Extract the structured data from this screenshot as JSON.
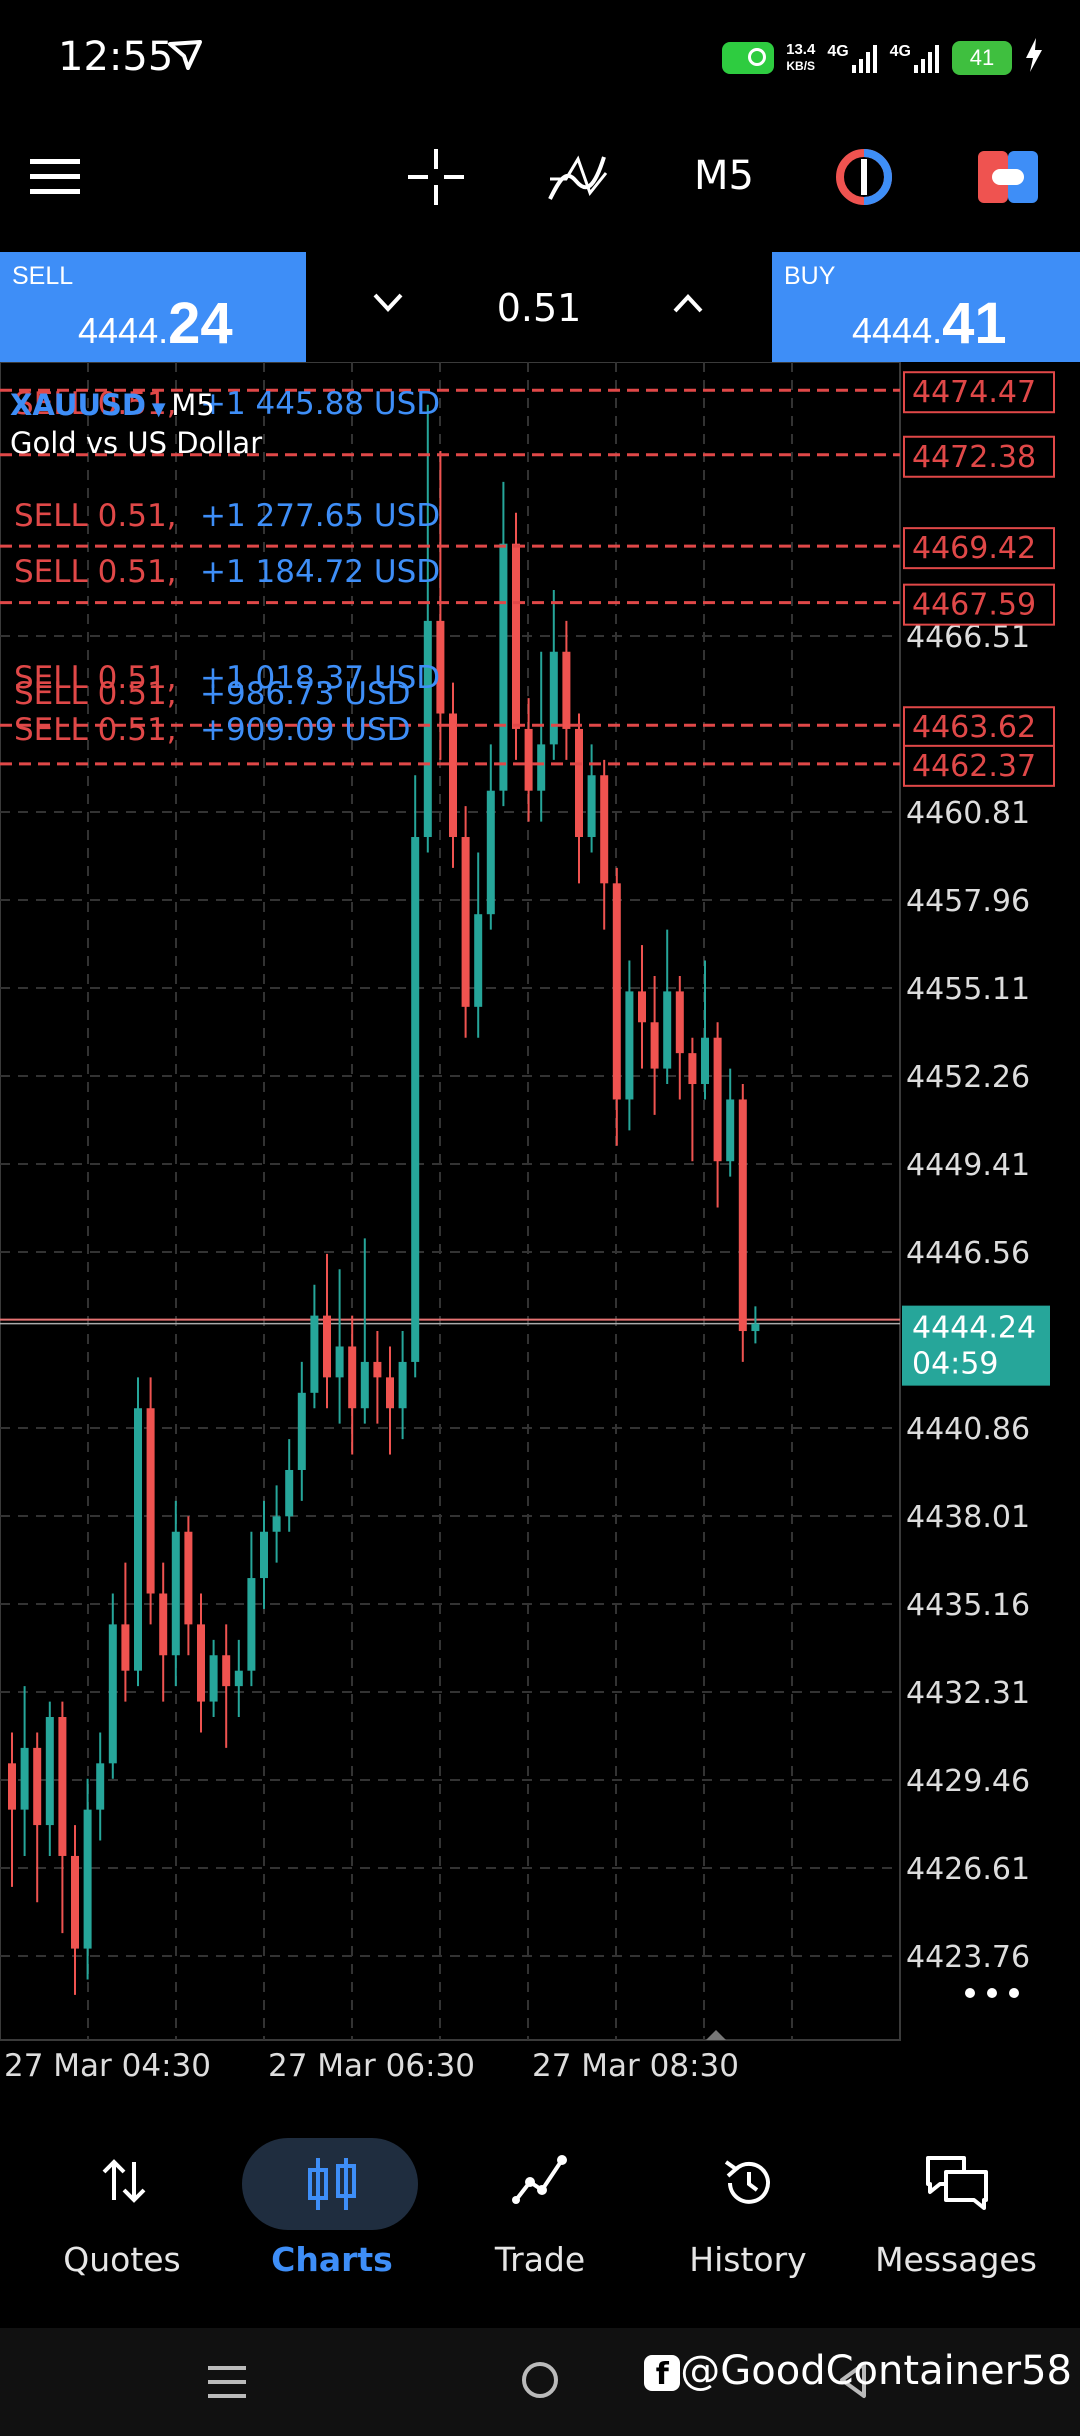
{
  "status": {
    "time": "12:55",
    "net_speed_top": "13.4",
    "net_speed_unit": "KB/S",
    "net1": "4G",
    "net2": "4G",
    "battery": "41"
  },
  "toolbar": {
    "timeframe": "M5"
  },
  "trade": {
    "sell_label": "SELL",
    "sell_price_prefix": "4444.",
    "sell_price_big": "24",
    "lot": "0.51",
    "buy_label": "BUY",
    "buy_price_prefix": "4444.",
    "buy_price_big": "41"
  },
  "chart": {
    "symbol": "XAUUSD",
    "symbol_tf": "M5",
    "description": "Gold vs US Dollar",
    "current_price": "4444.24",
    "countdown": "04:59",
    "price_ticks": [
      "4466.51",
      "4460.81",
      "4457.96",
      "4455.11",
      "4452.26",
      "4449.41",
      "4446.56",
      "4440.86",
      "4438.01",
      "4435.16",
      "4432.31",
      "4429.46",
      "4426.61",
      "4423.76"
    ],
    "order_prices": [
      "4474.47",
      "4472.38",
      "4469.42",
      "4467.59",
      "4463.62",
      "4462.37"
    ],
    "orders": [
      {
        "side": "SELL 0.51,",
        "profit": "+1 445.88 USD"
      },
      {
        "side": "SELL 0.51,",
        "profit": "+1 277.65 USD"
      },
      {
        "side": "SELL 0.51,",
        "profit": "+1 184.72 USD"
      },
      {
        "side": "SELL 0.51,",
        "profit": "+1 018.37 USD"
      },
      {
        "side": "SELL 0.51,",
        "profit": "+986.73 USD"
      },
      {
        "side": "SELL 0.51,",
        "profit": "+909.09 USD"
      }
    ],
    "time_labels": [
      "27 Mar 04:30",
      "27 Mar 06:30",
      "27 Mar 08:30"
    ]
  },
  "nav": {
    "items": [
      {
        "label": "Quotes"
      },
      {
        "label": "Charts"
      },
      {
        "label": "Trade"
      },
      {
        "label": "History"
      },
      {
        "label": "Messages"
      }
    ]
  },
  "watermark": "@GoodContainer58",
  "colors": {
    "accent": "#3e8ef7",
    "bull": "#26a69a",
    "bear": "#ef5350",
    "order_line": "#e04848"
  }
}
